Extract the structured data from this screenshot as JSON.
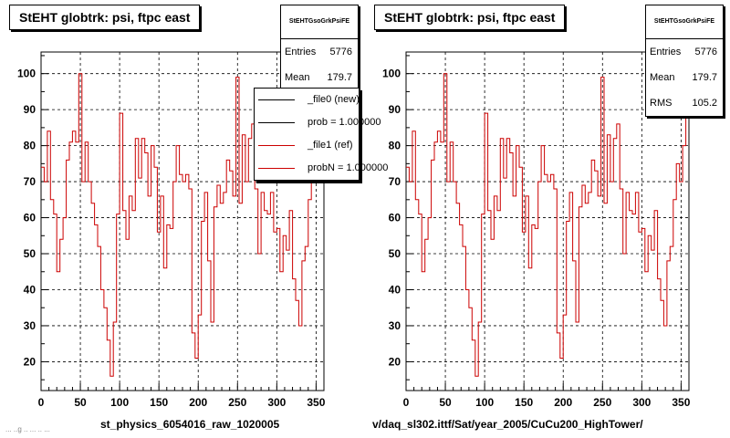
{
  "footer": {
    "left": "st_physics_6054016_raw_1020005",
    "right": "v/daq_sl302.ittf/Sat/year_2005/CuCu200_HighTower/",
    "smudge": "... ..g .. ... .. ..."
  },
  "pads": [
    {
      "title": "StEHT globtrk: psi, ftpc east",
      "stats": {
        "header": "StEHTGsoGrkPsiFE",
        "rows": [
          {
            "label": "Entries",
            "value": "5776"
          },
          {
            "label": "Mean",
            "value": "179.7"
          }
        ]
      },
      "legend": [
        {
          "label": "_file0 (new)",
          "color": "#000000"
        },
        {
          "label": "prob = 1.000000",
          "color": "#000000"
        },
        {
          "label": "_file1 (ref)",
          "color": "#cc0000"
        },
        {
          "label": "probN = 1.000000",
          "color": "#cc0000"
        }
      ]
    },
    {
      "title": "StEHT globtrk: psi, ftpc east",
      "stats": {
        "header": "StEHTGsoGrkPsiFE",
        "rows": [
          {
            "label": "Entries",
            "value": "5776"
          },
          {
            "label": "Mean",
            "value": "179.7"
          },
          {
            "label": "RMS",
            "value": "105.2"
          }
        ]
      }
    }
  ],
  "chart_data": {
    "type": "line",
    "style": "step histogram",
    "title": "StEHT globtrk: psi, ftpc east",
    "xlim": [
      0,
      360
    ],
    "ylim": [
      12,
      106
    ],
    "xticks": [
      0,
      50,
      100,
      150,
      200,
      250,
      300,
      350
    ],
    "yticks": [
      20,
      30,
      40,
      50,
      60,
      70,
      80,
      90,
      100
    ],
    "grid": true,
    "line_color": "#cc0000",
    "bin_width": 4,
    "x": [
      0,
      4,
      8,
      12,
      16,
      20,
      24,
      28,
      32,
      36,
      40,
      44,
      48,
      52,
      56,
      60,
      64,
      68,
      72,
      76,
      80,
      84,
      88,
      92,
      96,
      100,
      104,
      108,
      112,
      116,
      120,
      124,
      128,
      132,
      136,
      140,
      144,
      148,
      152,
      156,
      160,
      164,
      168,
      172,
      176,
      180,
      184,
      188,
      192,
      196,
      200,
      204,
      208,
      212,
      216,
      220,
      224,
      228,
      232,
      236,
      240,
      244,
      248,
      252,
      256,
      260,
      264,
      268,
      272,
      276,
      280,
      284,
      288,
      292,
      296,
      300,
      304,
      308,
      312,
      316,
      320,
      324,
      328,
      332,
      336,
      340,
      344,
      348,
      352,
      356
    ],
    "values": [
      74,
      70,
      84,
      65,
      61,
      45,
      54,
      60,
      76,
      81,
      84,
      81,
      100,
      70,
      81,
      70,
      64,
      58,
      52,
      40,
      35,
      26,
      16,
      31,
      61,
      89,
      62,
      54,
      66,
      62,
      82,
      71,
      82,
      78,
      66,
      80,
      74,
      56,
      66,
      46,
      58,
      57,
      70,
      80,
      72,
      70,
      72,
      68,
      28,
      21,
      33,
      59,
      67,
      48,
      31,
      63,
      69,
      64,
      67,
      76,
      73,
      66,
      99,
      64,
      83,
      70,
      82,
      86,
      68,
      50,
      67,
      62,
      61,
      67,
      56,
      57,
      45,
      55,
      51,
      62,
      43,
      37,
      30,
      48,
      52,
      65,
      75,
      70,
      80,
      88
    ]
  }
}
